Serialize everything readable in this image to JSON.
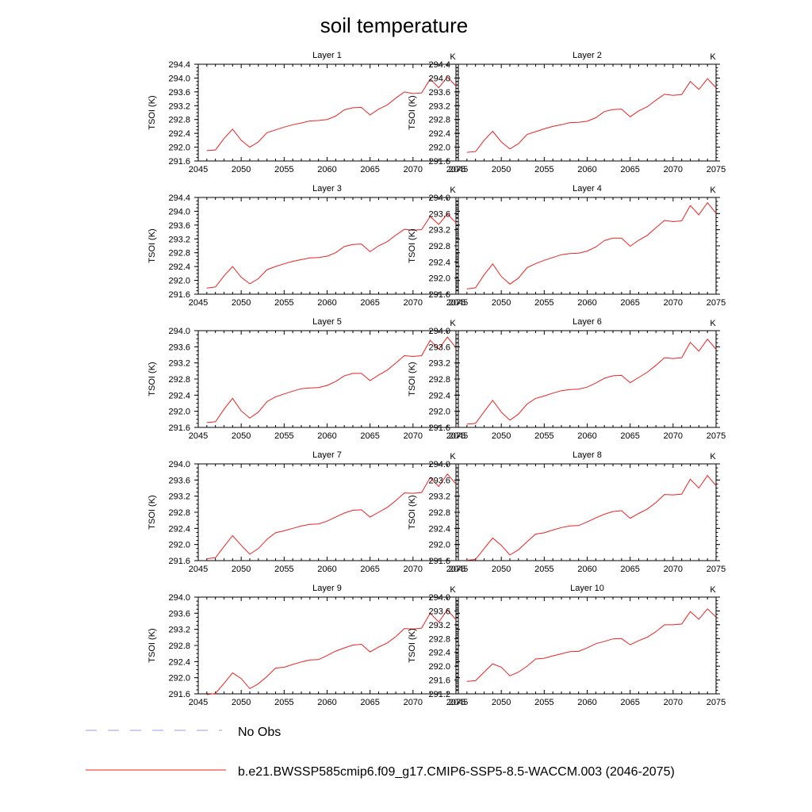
{
  "figure_title": "soil temperature",
  "legend": [
    {
      "label": "No Obs",
      "color": "#9999ee",
      "dash": true
    },
    {
      "label": "b.e21.BWSSP585cmip6.f09_g17.CMIP6-SSP5-8.5-WACCM.003 (2046-2075)",
      "color": "#ee2222",
      "dash": false
    }
  ],
  "chart_data": [
    {
      "type": "line",
      "title": "Layer 1",
      "unit_label": "K",
      "ylabel": "TSOI  (K)",
      "xlim": [
        2045,
        2075
      ],
      "ylim": [
        291.6,
        294.4
      ],
      "xticks": [
        2045,
        2050,
        2055,
        2060,
        2065,
        2070,
        2075
      ],
      "yticks": [
        "291.6",
        "292.0",
        "292.4",
        "292.8",
        "293.2",
        "293.6",
        "294.0",
        "294.4"
      ],
      "grid": false,
      "x": [
        2046,
        2047,
        2048,
        2049,
        2050,
        2051,
        2052,
        2053,
        2054,
        2055,
        2056,
        2057,
        2058,
        2059,
        2060,
        2061,
        2062,
        2063,
        2064,
        2065,
        2066,
        2067,
        2068,
        2069,
        2070,
        2071,
        2072,
        2073,
        2074,
        2075
      ],
      "series": [
        {
          "name": "b.e21.BWSSP585cmip6.f09_g17.CMIP6-SSP5-8.5-WACCM.003 (2046-2075)",
          "values": [
            291.9,
            291.92,
            292.25,
            292.52,
            292.2,
            292.0,
            292.15,
            292.42,
            292.5,
            292.58,
            292.65,
            292.7,
            292.76,
            292.77,
            292.8,
            292.9,
            293.08,
            293.14,
            293.15,
            292.93,
            293.1,
            293.22,
            293.42,
            293.6,
            293.55,
            293.57,
            293.97,
            293.72,
            294.03,
            293.77
          ]
        }
      ]
    },
    {
      "type": "line",
      "title": "Layer 2",
      "unit_label": "K",
      "ylabel": "TSOI  (K)",
      "xlim": [
        2045,
        2075
      ],
      "ylim": [
        291.6,
        294.4
      ],
      "xticks": [
        2045,
        2050,
        2055,
        2060,
        2065,
        2070,
        2075
      ],
      "yticks": [
        "291.6",
        "292.0",
        "292.4",
        "292.8",
        "293.2",
        "293.6",
        "294.0",
        "294.4"
      ],
      "grid": false,
      "x": [
        2046,
        2047,
        2048,
        2049,
        2050,
        2051,
        2052,
        2053,
        2054,
        2055,
        2056,
        2057,
        2058,
        2059,
        2060,
        2061,
        2062,
        2063,
        2064,
        2065,
        2066,
        2067,
        2068,
        2069,
        2070,
        2071,
        2072,
        2073,
        2074,
        2075
      ],
      "series": [
        {
          "name": "b.e21.BWSSP585cmip6.f09_g17.CMIP6-SSP5-8.5-WACCM.003 (2046-2075)",
          "values": [
            291.85,
            291.87,
            292.2,
            292.46,
            292.15,
            291.95,
            292.1,
            292.37,
            292.45,
            292.53,
            292.6,
            292.65,
            292.71,
            292.72,
            292.75,
            292.85,
            293.03,
            293.09,
            293.1,
            292.88,
            293.05,
            293.17,
            293.36,
            293.53,
            293.5,
            293.52,
            293.9,
            293.67,
            293.98,
            293.72
          ]
        }
      ]
    },
    {
      "type": "line",
      "title": "Layer 3",
      "unit_label": "K",
      "ylabel": "TSOI  (K)",
      "xlim": [
        2045,
        2075
      ],
      "ylim": [
        291.6,
        294.4
      ],
      "xticks": [
        2045,
        2050,
        2055,
        2060,
        2065,
        2070,
        2075
      ],
      "yticks": [
        "291.6",
        "292.0",
        "292.4",
        "292.8",
        "293.2",
        "293.6",
        "294.0",
        "294.4"
      ],
      "grid": false,
      "x": [
        2046,
        2047,
        2048,
        2049,
        2050,
        2051,
        2052,
        2053,
        2054,
        2055,
        2056,
        2057,
        2058,
        2059,
        2060,
        2061,
        2062,
        2063,
        2064,
        2065,
        2066,
        2067,
        2068,
        2069,
        2070,
        2071,
        2072,
        2073,
        2074,
        2075
      ],
      "series": [
        {
          "name": "b.e21.BWSSP585cmip6.f09_g17.CMIP6-SSP5-8.5-WACCM.003 (2046-2075)",
          "values": [
            291.78,
            291.81,
            292.13,
            292.4,
            292.09,
            291.9,
            292.05,
            292.31,
            292.4,
            292.48,
            292.55,
            292.6,
            292.65,
            292.66,
            292.7,
            292.8,
            292.98,
            293.04,
            293.05,
            292.83,
            293.0,
            293.12,
            293.31,
            293.48,
            293.45,
            293.47,
            293.85,
            293.62,
            293.92,
            293.67
          ]
        }
      ]
    },
    {
      "type": "line",
      "title": "Layer 4",
      "unit_label": "K",
      "ylabel": "TSOI  (K)",
      "xlim": [
        2045,
        2075
      ],
      "ylim": [
        291.6,
        294.0
      ],
      "xticks": [
        2045,
        2050,
        2055,
        2060,
        2065,
        2070,
        2075
      ],
      "yticks": [
        "291.6",
        "292.0",
        "292.4",
        "292.8",
        "293.2",
        "293.6",
        "294.0"
      ],
      "grid": false,
      "x": [
        2046,
        2047,
        2048,
        2049,
        2050,
        2051,
        2052,
        2053,
        2054,
        2055,
        2056,
        2057,
        2058,
        2059,
        2060,
        2061,
        2062,
        2063,
        2064,
        2065,
        2066,
        2067,
        2068,
        2069,
        2070,
        2071,
        2072,
        2073,
        2074,
        2075
      ],
      "series": [
        {
          "name": "b.e21.BWSSP585cmip6.f09_g17.CMIP6-SSP5-8.5-WACCM.003 (2046-2075)",
          "values": [
            291.73,
            291.76,
            292.08,
            292.35,
            292.04,
            291.85,
            292.0,
            292.26,
            292.36,
            292.44,
            292.51,
            292.58,
            292.61,
            292.62,
            292.67,
            292.77,
            292.93,
            292.99,
            292.99,
            292.79,
            292.94,
            293.06,
            293.25,
            293.43,
            293.4,
            293.42,
            293.8,
            293.57,
            293.87,
            293.61
          ]
        }
      ]
    },
    {
      "type": "line",
      "title": "Layer 5",
      "unit_label": "K",
      "ylabel": "TSOI  (K)",
      "xlim": [
        2045,
        2075
      ],
      "ylim": [
        291.6,
        294.0
      ],
      "xticks": [
        2045,
        2050,
        2055,
        2060,
        2065,
        2070,
        2075
      ],
      "yticks": [
        "291.6",
        "292.0",
        "292.4",
        "292.8",
        "293.2",
        "293.6",
        "294.0"
      ],
      "grid": false,
      "x": [
        2046,
        2047,
        2048,
        2049,
        2050,
        2051,
        2052,
        2053,
        2054,
        2055,
        2056,
        2057,
        2058,
        2059,
        2060,
        2061,
        2062,
        2063,
        2064,
        2065,
        2066,
        2067,
        2068,
        2069,
        2070,
        2071,
        2072,
        2073,
        2074,
        2075
      ],
      "series": [
        {
          "name": "b.e21.BWSSP585cmip6.f09_g17.CMIP6-SSP5-8.5-WACCM.003 (2046-2075)",
          "values": [
            291.72,
            291.74,
            292.05,
            292.32,
            292.01,
            291.83,
            291.98,
            292.24,
            292.36,
            292.43,
            292.5,
            292.56,
            292.58,
            292.59,
            292.64,
            292.74,
            292.88,
            292.94,
            292.94,
            292.76,
            292.9,
            293.02,
            293.2,
            293.38,
            293.36,
            293.38,
            293.76,
            293.54,
            293.84,
            293.58
          ]
        }
      ]
    },
    {
      "type": "line",
      "title": "Layer 6",
      "unit_label": "K",
      "ylabel": "TSOI  (K)",
      "xlim": [
        2045,
        2075
      ],
      "ylim": [
        291.6,
        294.0
      ],
      "xticks": [
        2045,
        2050,
        2055,
        2060,
        2065,
        2070,
        2075
      ],
      "yticks": [
        "291.6",
        "292.0",
        "292.4",
        "292.8",
        "293.2",
        "293.6",
        "294.0"
      ],
      "grid": false,
      "x": [
        2046,
        2047,
        2048,
        2049,
        2050,
        2051,
        2052,
        2053,
        2054,
        2055,
        2056,
        2057,
        2058,
        2059,
        2060,
        2061,
        2062,
        2063,
        2064,
        2065,
        2066,
        2067,
        2068,
        2069,
        2070,
        2071,
        2072,
        2073,
        2074,
        2075
      ],
      "series": [
        {
          "name": "b.e21.BWSSP585cmip6.f09_g17.CMIP6-SSP5-8.5-WACCM.003 (2046-2075)",
          "values": [
            291.68,
            291.7,
            291.99,
            292.27,
            291.98,
            291.78,
            291.93,
            292.18,
            292.32,
            292.38,
            292.45,
            292.51,
            292.54,
            292.55,
            292.6,
            292.7,
            292.82,
            292.88,
            292.89,
            292.71,
            292.84,
            292.97,
            293.14,
            293.33,
            293.31,
            293.33,
            293.71,
            293.49,
            293.79,
            293.54
          ]
        }
      ]
    },
    {
      "type": "line",
      "title": "Layer 7",
      "unit_label": "K",
      "ylabel": "TSOI  (K)",
      "xlim": [
        2045,
        2075
      ],
      "ylim": [
        291.6,
        294.0
      ],
      "xticks": [
        2045,
        2050,
        2055,
        2060,
        2065,
        2070,
        2075
      ],
      "yticks": [
        "291.6",
        "292.0",
        "292.4",
        "292.8",
        "293.2",
        "293.6",
        "294.0"
      ],
      "grid": false,
      "x": [
        2046,
        2047,
        2048,
        2049,
        2050,
        2051,
        2052,
        2053,
        2054,
        2055,
        2056,
        2057,
        2058,
        2059,
        2060,
        2061,
        2062,
        2063,
        2064,
        2065,
        2066,
        2067,
        2068,
        2069,
        2070,
        2071,
        2072,
        2073,
        2074,
        2075
      ],
      "series": [
        {
          "name": "b.e21.BWSSP585cmip6.f09_g17.CMIP6-SSP5-8.5-WACCM.003 (2046-2075)",
          "values": [
            291.65,
            291.67,
            291.95,
            292.22,
            291.98,
            291.76,
            291.9,
            292.13,
            292.29,
            292.34,
            292.4,
            292.46,
            292.5,
            292.51,
            292.58,
            292.68,
            292.78,
            292.85,
            292.86,
            292.68,
            292.8,
            292.92,
            293.09,
            293.28,
            293.27,
            293.29,
            293.66,
            293.44,
            293.75,
            293.5
          ]
        }
      ]
    },
    {
      "type": "line",
      "title": "Layer 8",
      "unit_label": "K",
      "ylabel": "TSOI  (K)",
      "xlim": [
        2045,
        2075
      ],
      "ylim": [
        291.6,
        294.0
      ],
      "xticks": [
        2045,
        2050,
        2055,
        2060,
        2065,
        2070,
        2075
      ],
      "yticks": [
        "291.6",
        "292.0",
        "292.4",
        "292.8",
        "293.2",
        "293.6",
        "294.0"
      ],
      "grid": false,
      "x": [
        2046,
        2047,
        2048,
        2049,
        2050,
        2051,
        2052,
        2053,
        2054,
        2055,
        2056,
        2057,
        2058,
        2059,
        2060,
        2061,
        2062,
        2063,
        2064,
        2065,
        2066,
        2067,
        2068,
        2069,
        2070,
        2071,
        2072,
        2073,
        2074,
        2075
      ],
      "series": [
        {
          "name": "b.e21.BWSSP585cmip6.f09_g17.CMIP6-SSP5-8.5-WACCM.003 (2046-2075)",
          "values": [
            291.61,
            291.63,
            291.9,
            292.16,
            291.98,
            291.74,
            291.87,
            292.07,
            292.26,
            292.29,
            292.36,
            292.42,
            292.46,
            292.47,
            292.56,
            292.66,
            292.75,
            292.82,
            292.84,
            292.65,
            292.77,
            292.88,
            293.04,
            293.24,
            293.23,
            293.25,
            293.62,
            293.4,
            293.71,
            293.46
          ]
        }
      ]
    },
    {
      "type": "line",
      "title": "Layer 9",
      "unit_label": "K",
      "ylabel": "TSOI  (K)",
      "xlim": [
        2045,
        2075
      ],
      "ylim": [
        291.6,
        294.0
      ],
      "xticks": [
        2045,
        2050,
        2055,
        2060,
        2065,
        2070,
        2075
      ],
      "yticks": [
        "291.6",
        "292.0",
        "292.4",
        "292.8",
        "293.2",
        "293.6",
        "294.0"
      ],
      "grid": false,
      "x": [
        2046,
        2047,
        2048,
        2049,
        2050,
        2051,
        2052,
        2053,
        2054,
        2055,
        2056,
        2057,
        2058,
        2059,
        2060,
        2061,
        2062,
        2063,
        2064,
        2065,
        2066,
        2067,
        2068,
        2069,
        2070,
        2071,
        2072,
        2073,
        2074,
        2075
      ],
      "series": [
        {
          "name": "b.e21.BWSSP585cmip6.f09_g17.CMIP6-SSP5-8.5-WACCM.003 (2046-2075)",
          "values": [
            291.58,
            291.61,
            291.86,
            292.12,
            291.98,
            291.73,
            291.85,
            292.03,
            292.24,
            292.26,
            292.33,
            292.39,
            292.44,
            292.45,
            292.55,
            292.66,
            292.74,
            292.81,
            292.83,
            292.64,
            292.76,
            292.86,
            293.02,
            293.22,
            293.21,
            293.23,
            293.6,
            293.38,
            293.69,
            293.44
          ]
        }
      ]
    },
    {
      "type": "line",
      "title": "Layer 10",
      "unit_label": "K",
      "ylabel": "TSOI  (K)",
      "xlim": [
        2045,
        2075
      ],
      "ylim": [
        291.2,
        294.0
      ],
      "xticks": [
        2045,
        2050,
        2055,
        2060,
        2065,
        2070,
        2075
      ],
      "yticks": [
        "291.2",
        "291.6",
        "292.0",
        "292.4",
        "292.8",
        "293.2",
        "293.6",
        "294.0"
      ],
      "grid": false,
      "x": [
        2046,
        2047,
        2048,
        2049,
        2050,
        2051,
        2052,
        2053,
        2054,
        2055,
        2056,
        2057,
        2058,
        2059,
        2060,
        2061,
        2062,
        2063,
        2064,
        2065,
        2066,
        2067,
        2068,
        2069,
        2070,
        2071,
        2072,
        2073,
        2074,
        2075
      ],
      "series": [
        {
          "name": "b.e21.BWSSP585cmip6.f09_g17.CMIP6-SSP5-8.5-WACCM.003 (2046-2075)",
          "values": [
            291.56,
            291.58,
            291.83,
            292.07,
            291.97,
            291.72,
            291.83,
            292.0,
            292.21,
            292.23,
            292.3,
            292.36,
            292.42,
            292.43,
            292.53,
            292.65,
            292.72,
            292.79,
            292.8,
            292.62,
            292.74,
            292.84,
            293.0,
            293.2,
            293.2,
            293.22,
            293.58,
            293.36,
            293.66,
            293.42
          ]
        }
      ]
    }
  ]
}
